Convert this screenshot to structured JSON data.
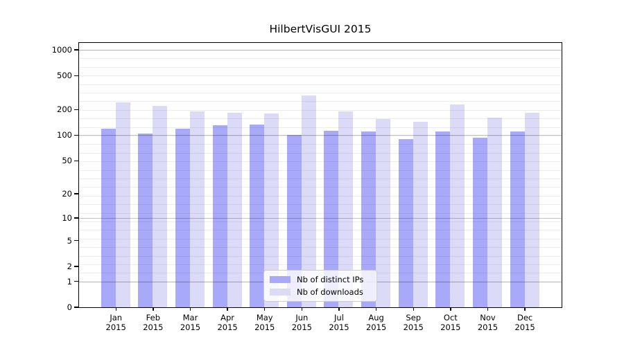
{
  "chart_data": {
    "type": "bar",
    "title": "HilbertVisGUI 2015",
    "categories": [
      "Jan",
      "Feb",
      "Mar",
      "Apr",
      "May",
      "Jun",
      "Jul",
      "Aug",
      "Sep",
      "Oct",
      "Nov",
      "Dec"
    ],
    "category_year": "2015",
    "series": [
      {
        "name": "Nb of distinct IPs",
        "color": "#a9a9fa",
        "values": [
          120,
          105,
          119,
          130,
          133,
          100,
          112,
          110,
          90,
          110,
          93,
          110
        ]
      },
      {
        "name": "Nb of downloads",
        "color": "#dbdbf8",
        "values": [
          245,
          220,
          190,
          184,
          180,
          295,
          190,
          155,
          145,
          230,
          160,
          185
        ]
      }
    ],
    "y_axis": {
      "ticks": [
        0,
        1,
        2,
        5,
        10,
        20,
        50,
        100,
        200,
        500,
        1000
      ],
      "scale": "log10(1+x)",
      "major_lines_at": [
        1,
        10,
        100,
        1000
      ]
    },
    "xlabel": "",
    "ylabel": "",
    "legend_position": "lower-center",
    "grid": true
  },
  "colors": {
    "background": "#ffffff",
    "axis": "#000000",
    "grid_minor": "rgba(0,0,0,0.07)",
    "grid_major": "rgba(0,0,0,0.24)",
    "legend_border": "#cccccc"
  }
}
